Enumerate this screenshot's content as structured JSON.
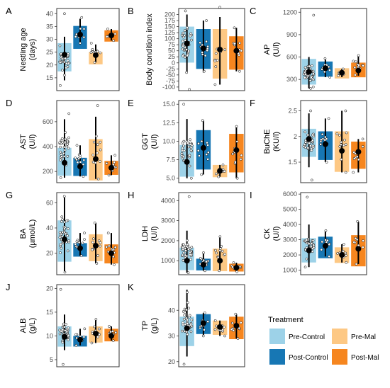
{
  "colors": {
    "pre_control": "#9DD2E8",
    "post_control": "#1777B4",
    "pre_mal": "#FDC884",
    "post_mal": "#F6861F"
  },
  "legend": {
    "title": "Treatment",
    "items": [
      {
        "key": "pre_control",
        "label": "Pre-Control"
      },
      {
        "key": "pre_mal",
        "label": "Pre-Mal"
      },
      {
        "key": "post_control",
        "label": "Post-Control"
      },
      {
        "key": "post_mal",
        "label": "Post-Mal"
      }
    ]
  },
  "chart_data": [
    {
      "type": "bar",
      "letter": "A",
      "ylabel": [
        "Nestling age",
        "(days)"
      ],
      "ylim": [
        10,
        42
      ],
      "ticks": [
        15,
        20,
        25,
        30,
        35,
        40
      ],
      "groups": [
        {
          "key": "pre_control",
          "box": [
            28.5
          ],
          "mean": 24,
          "ci": [
            22,
            27
          ],
          "n": 30,
          "pts": [
            40,
            12,
            18,
            16
          ],
          "lo": 14,
          "hi": 31
        },
        {
          "key": "post_control",
          "box": [
            35.2
          ],
          "mean": 31.8,
          "ci": [
            28,
            35
          ],
          "n": 10,
          "pts": [
            38.5,
            28.5
          ],
          "lo": 28,
          "hi": 38
        },
        {
          "key": "pre_mal",
          "box": [
            25
          ],
          "mean": 23.8,
          "ci": [
            21.5,
            25.5
          ],
          "n": 10,
          "pts": [
            28.5,
            21
          ],
          "lo": 21,
          "hi": 28
        },
        {
          "key": "post_mal",
          "box": [
            33.5
          ],
          "mean": 31.5,
          "ci": [
            30,
            34
          ],
          "n": 8,
          "pts": [
            34,
            29.5
          ],
          "lo": 29.5,
          "hi": 34
        }
      ]
    },
    {
      "type": "bar",
      "letter": "B",
      "ylabel": [
        "Body condition index"
      ],
      "ylim": [
        -115,
        225
      ],
      "ticks": [
        -100,
        -75,
        -50,
        -25,
        0,
        25,
        50,
        75,
        100,
        125,
        150,
        175,
        200
      ],
      "groups": [
        {
          "key": "pre_control",
          "box": [
            150
          ],
          "mean": 80,
          "ci": [
            55,
            105
          ],
          "n": 35,
          "pts": [
            215,
            -110,
            -40
          ],
          "lo": -40,
          "hi": 200
        },
        {
          "key": "post_control",
          "box": [
            140
          ],
          "mean": 60,
          "ci": [
            20,
            110
          ],
          "n": 12,
          "pts": [
            175,
            -35
          ],
          "lo": -40,
          "hi": 175
        },
        {
          "key": "pre_mal",
          "box": [
            140
          ],
          "mean": 55,
          "ci": [
            0,
            100
          ],
          "n": 10,
          "pts": [
            230,
            -90
          ],
          "lo": -90,
          "hi": 190
        },
        {
          "key": "post_mal",
          "box": [
            110
          ],
          "mean": 50,
          "ci": [
            10,
            90
          ],
          "n": 10,
          "pts": [
            145,
            -35
          ],
          "lo": -35,
          "hi": 145
        }
      ]
    },
    {
      "type": "bar",
      "letter": "C",
      "ylabel": [
        "AP",
        "(U/l)"
      ],
      "ylim": [
        150,
        1250
      ],
      "ticks": [
        300,
        600,
        900,
        1200
      ],
      "groups": [
        {
          "key": "pre_control",
          "box": [
            575
          ],
          "mean": 400,
          "ci": [
            330,
            500
          ],
          "n": 35,
          "pts": [
            1160,
            180,
            200
          ],
          "lo": 180,
          "hi": 600
        },
        {
          "key": "post_control",
          "box": [
            540
          ],
          "mean": 450,
          "ci": [
            390,
            530
          ],
          "n": 10,
          "pts": [
            580,
            330
          ],
          "lo": 330,
          "hi": 580
        },
        {
          "key": "pre_mal",
          "box": [
            450
          ],
          "mean": 390,
          "ci": [
            340,
            440
          ],
          "n": 8,
          "pts": [
            440,
            350
          ],
          "lo": 330,
          "hi": 440
        },
        {
          "key": "post_mal",
          "box": [
            525
          ],
          "mean": 420,
          "ci": [
            360,
            490
          ],
          "n": 10,
          "pts": [
            620,
            360
          ],
          "lo": 350,
          "hi": 620
        }
      ]
    },
    {
      "type": "bar",
      "letter": "D",
      "ylabel": [
        "AST",
        "(U/l)"
      ],
      "ylim": [
        110,
        770
      ],
      "ticks": [
        200,
        400,
        600
      ],
      "groups": [
        {
          "key": "pre_control",
          "box": [
            390
          ],
          "mean": 270,
          "ci": [
            220,
            330
          ],
          "n": 35,
          "pts": [
            665,
            150
          ],
          "lo": 150,
          "hi": 620
        },
        {
          "key": "post_control",
          "box": [
            310
          ],
          "mean": 240,
          "ci": [
            200,
            300
          ],
          "n": 10,
          "pts": [
            410,
            160
          ],
          "lo": 160,
          "hi": 410
        },
        {
          "key": "pre_mal",
          "box": [
            460
          ],
          "mean": 300,
          "ci": [
            200,
            450
          ],
          "n": 10,
          "pts": [
            730,
            140
          ],
          "lo": 140,
          "hi": 640
        },
        {
          "key": "post_mal",
          "box": [
            285
          ],
          "mean": 230,
          "ci": [
            200,
            280
          ],
          "n": 10,
          "pts": [
            330,
            170
          ],
          "lo": 170,
          "hi": 330
        }
      ]
    },
    {
      "type": "bar",
      "letter": "E",
      "ylabel": [
        "GGT",
        "(U/l)"
      ],
      "ylim": [
        4.4,
        15.5
      ],
      "ticks": [
        5.0,
        7.5,
        10.0,
        12.5,
        15.0
      ],
      "groups": [
        {
          "key": "pre_control",
          "box": [
            9.5
          ],
          "mean": 7.2,
          "ci": [
            6.2,
            8.5
          ],
          "n": 30,
          "pts": [
            15,
            5
          ],
          "lo": 5,
          "hi": 13
        },
        {
          "key": "post_control",
          "box": [
            11.5
          ],
          "mean": 9.1,
          "ci": [
            7.8,
            10.5
          ],
          "n": 10,
          "pts": [
            12.8,
            5.5
          ],
          "lo": 5.5,
          "hi": 12.8
        },
        {
          "key": "pre_mal",
          "box": [
            6.8
          ],
          "mean": 6.0,
          "ci": [
            5.5,
            6.5
          ],
          "n": 8,
          "pts": [
            6.8,
            5.2
          ],
          "lo": 5.2,
          "hi": 6.8
        },
        {
          "key": "post_mal",
          "box": [
            11.0
          ],
          "mean": 8.8,
          "ci": [
            7.5,
            10
          ],
          "n": 10,
          "pts": [
            12,
            5
          ],
          "lo": 5,
          "hi": 12
        }
      ]
    },
    {
      "type": "bar",
      "letter": "F",
      "ylabel": [
        "BuChE",
        "(KU/l)"
      ],
      "ylim": [
        1.1,
        2.7
      ],
      "ticks": [
        1.5,
        2.0,
        2.5
      ],
      "groups": [
        {
          "key": "pre_control",
          "box": [
            2.15
          ],
          "mean": 1.95,
          "ci": [
            1.85,
            2.05
          ],
          "n": 35,
          "pts": [
            2.5,
            1.15
          ],
          "lo": 1.4,
          "hi": 2.45
        },
        {
          "key": "post_control",
          "box": [
            2.1
          ],
          "mean": 1.85,
          "ci": [
            1.7,
            2.0
          ],
          "n": 10,
          "pts": [
            2.35,
            1.5
          ],
          "lo": 1.5,
          "hi": 2.35
        },
        {
          "key": "pre_mal",
          "box": [
            2.1
          ],
          "mean": 1.72,
          "ci": [
            1.5,
            1.95
          ],
          "n": 10,
          "pts": [
            2.5,
            1.3
          ],
          "lo": 1.3,
          "hi": 2.5
        },
        {
          "key": "post_mal",
          "box": [
            1.9
          ],
          "mean": 1.7,
          "ci": [
            1.55,
            1.85
          ],
          "n": 8,
          "pts": [
            1.95,
            1.3
          ],
          "lo": 1.3,
          "hi": 1.95
        }
      ]
    },
    {
      "type": "bar",
      "letter": "G",
      "ylabel": [
        "BA",
        "(µmol/L)"
      ],
      "ylim": [
        3,
        68
      ],
      "ticks": [
        20,
        40,
        60
      ],
      "groups": [
        {
          "key": "pre_control",
          "box": [
            46
          ],
          "mean": 31,
          "ci": [
            25,
            38
          ],
          "n": 35,
          "pts": [
            65,
            5
          ],
          "lo": 5,
          "hi": 65
        },
        {
          "key": "post_control",
          "box": [
            28
          ],
          "mean": 24,
          "ci": [
            20,
            28
          ],
          "n": 10,
          "pts": [
            36,
            18
          ],
          "lo": 18,
          "hi": 36
        },
        {
          "key": "pre_mal",
          "box": [
            35
          ],
          "mean": 26,
          "ci": [
            20,
            32
          ],
          "n": 10,
          "pts": [
            44,
            12
          ],
          "lo": 12,
          "hi": 44
        },
        {
          "key": "post_mal",
          "box": [
            27
          ],
          "mean": 20,
          "ci": [
            16,
            24
          ],
          "n": 10,
          "pts": [
            36,
            11
          ],
          "lo": 11,
          "hi": 36
        }
      ]
    },
    {
      "type": "bar",
      "letter": "H",
      "ylabel": [
        "LDH",
        "(U/l)"
      ],
      "ylim": [
        300,
        4400
      ],
      "ticks": [
        1000,
        2000,
        3000,
        4000
      ],
      "groups": [
        {
          "key": "pre_control",
          "box": [
            1650
          ],
          "mean": 1000,
          "ci": [
            800,
            1300
          ],
          "n": 35,
          "pts": [
            4200,
            400
          ],
          "lo": 400,
          "hi": 2500
        },
        {
          "key": "post_control",
          "box": [
            1100
          ],
          "mean": 800,
          "ci": [
            650,
            950
          ],
          "n": 10,
          "pts": [
            1400,
            500
          ],
          "lo": 500,
          "hi": 1400
        },
        {
          "key": "pre_mal",
          "box": [
            1600
          ],
          "mean": 1000,
          "ci": [
            700,
            1400
          ],
          "n": 10,
          "pts": [
            2200,
            500
          ],
          "lo": 500,
          "hi": 2200
        },
        {
          "key": "post_mal",
          "box": [
            850
          ],
          "mean": 650,
          "ci": [
            550,
            780
          ],
          "n": 8,
          "pts": [
            900,
            450
          ],
          "lo": 450,
          "hi": 900
        }
      ]
    },
    {
      "type": "bar",
      "letter": "I",
      "ylabel": [
        "CK",
        "(U/l)"
      ],
      "ylim": [
        700,
        6100
      ],
      "ticks": [
        1000,
        2000,
        3000,
        4000,
        5000,
        6000
      ],
      "groups": [
        {
          "key": "pre_control",
          "box": [
            3100
          ],
          "mean": 2300,
          "ci": [
            2000,
            2700
          ],
          "n": 35,
          "pts": [
            5800,
            1200
          ],
          "lo": 1200,
          "hi": 4000
        },
        {
          "key": "post_control",
          "box": [
            3200
          ],
          "mean": 2600,
          "ci": [
            2100,
            3200
          ],
          "n": 10,
          "pts": [
            3600,
            1900
          ],
          "lo": 1900,
          "hi": 3600
        },
        {
          "key": "pre_mal",
          "box": [
            2500
          ],
          "mean": 2000,
          "ci": [
            1700,
            2400
          ],
          "n": 8,
          "pts": [
            2700,
            1500
          ],
          "lo": 1500,
          "hi": 2700
        },
        {
          "key": "post_mal",
          "box": [
            3300
          ],
          "mean": 2400,
          "ci": [
            1700,
            3100
          ],
          "n": 8,
          "pts": [
            4200,
            1400
          ],
          "lo": 1400,
          "hi": 4200
        }
      ]
    },
    {
      "type": "bar",
      "letter": "J",
      "ylabel": [
        "ALB",
        "(g/L)"
      ],
      "ylim": [
        3.5,
        20.8
      ],
      "ticks": [
        5,
        10,
        15,
        20
      ],
      "groups": [
        {
          "key": "pre_control",
          "box": [
            12
          ],
          "mean": 9.8,
          "ci": [
            9,
            11
          ],
          "n": 35,
          "pts": [
            19.8,
            4
          ],
          "lo": 7,
          "hi": 14.5
        },
        {
          "key": "post_control",
          "box": [
            10
          ],
          "mean": 9.2,
          "ci": [
            8.3,
            10
          ],
          "n": 8,
          "pts": [
            11.5,
            8
          ],
          "lo": 8,
          "hi": 11.5
        },
        {
          "key": "pre_mal",
          "box": [
            12
          ],
          "mean": 10.5,
          "ci": [
            9.5,
            11.5
          ],
          "n": 10,
          "pts": [
            13.5,
            8.5
          ],
          "lo": 8.5,
          "hi": 13.5
        },
        {
          "key": "post_mal",
          "box": [
            11.5
          ],
          "mean": 10,
          "ci": [
            9.3,
            10.8
          ],
          "n": 8,
          "pts": [
            12,
            9
          ],
          "lo": 9,
          "hi": 12
        }
      ]
    },
    {
      "type": "bar",
      "letter": "K",
      "ylabel": [
        "TP",
        "(g/L)"
      ],
      "ylim": [
        18,
        50
      ],
      "ticks": [
        20,
        30,
        40
      ],
      "groups": [
        {
          "key": "pre_control",
          "box": [
            37.5
          ],
          "mean": 33,
          "ci": [
            31,
            35
          ],
          "n": 35,
          "pts": [
            47,
            19
          ],
          "lo": 22,
          "hi": 48
        },
        {
          "key": "post_control",
          "box": [
            38.5
          ],
          "mean": 35,
          "ci": [
            33,
            37
          ],
          "n": 10,
          "pts": [
            39,
            30
          ],
          "lo": 30,
          "hi": 39
        },
        {
          "key": "pre_mal",
          "box": [
            36
          ],
          "mean": 33.5,
          "ci": [
            32,
            35
          ],
          "n": 10,
          "pts": [
            36,
            30
          ],
          "lo": 30,
          "hi": 36
        },
        {
          "key": "post_mal",
          "box": [
            37.5
          ],
          "mean": 34,
          "ci": [
            31,
            37
          ],
          "n": 8,
          "pts": [
            38.5,
            29
          ],
          "lo": 29,
          "hi": 38.5
        }
      ]
    }
  ]
}
